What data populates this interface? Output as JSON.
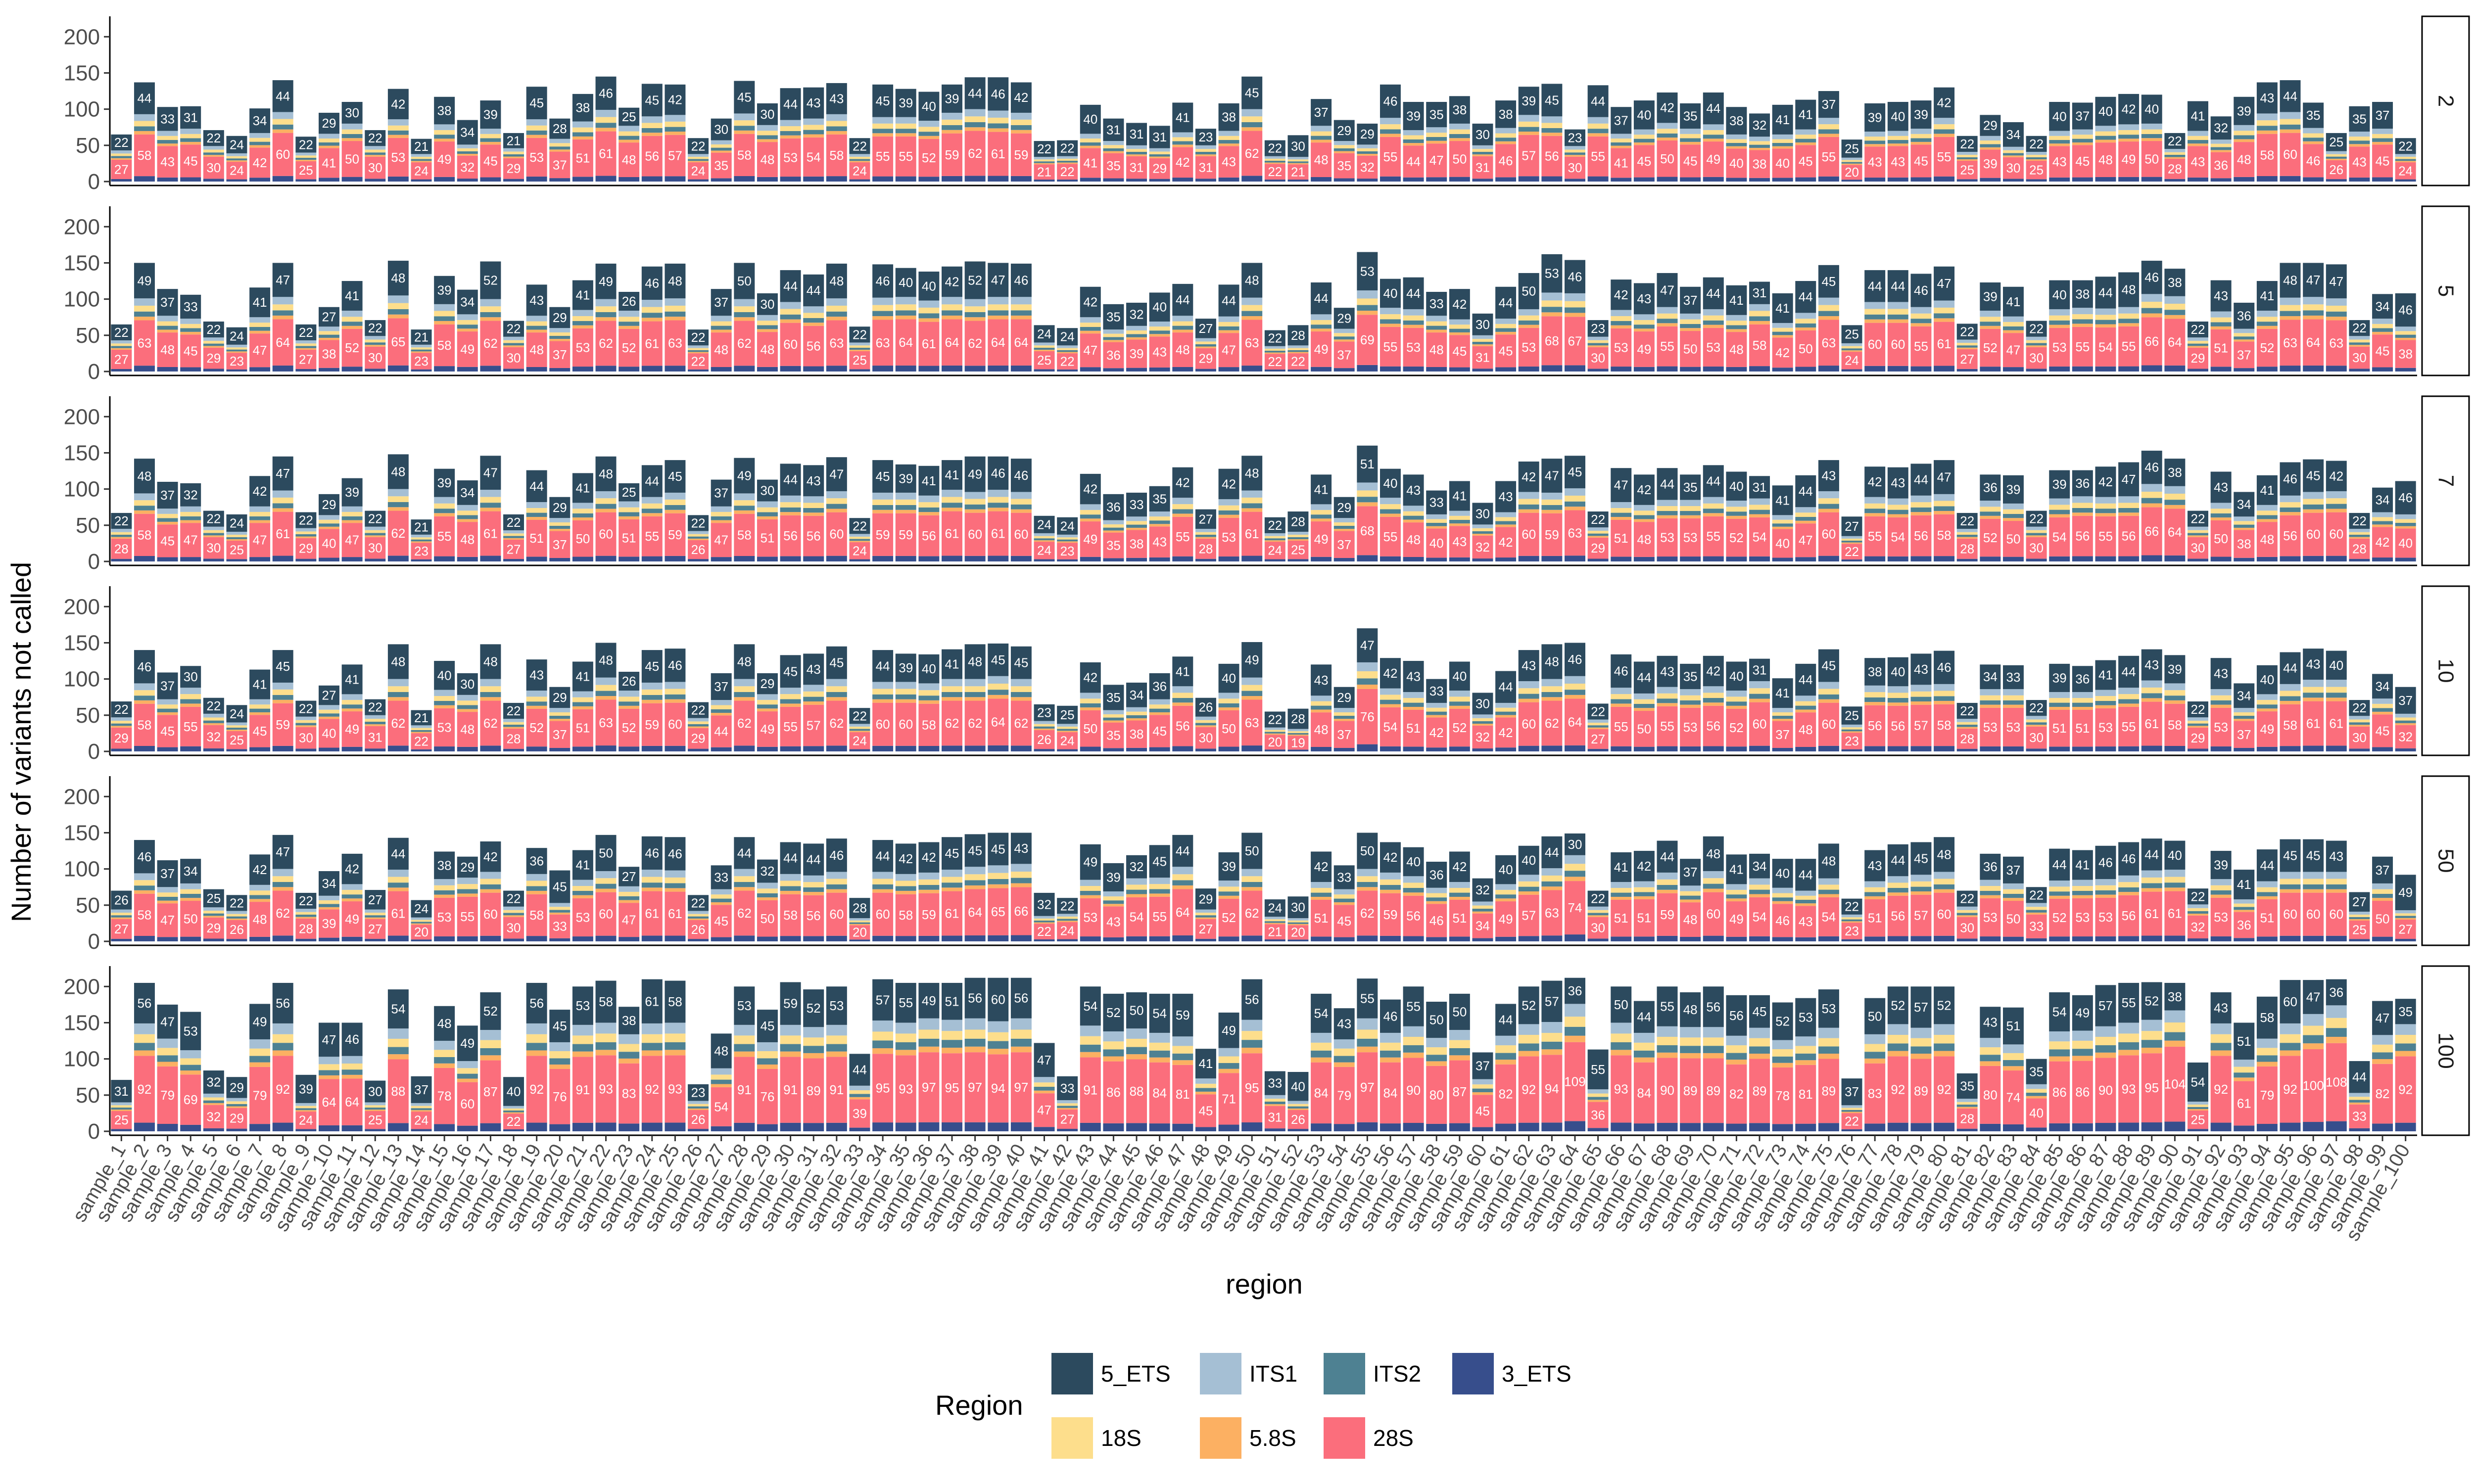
{
  "chart_data": {
    "type": "bar",
    "stacked": true,
    "facets_label_position": "right",
    "xlabel": "region",
    "ylabel": "Number of variants not called",
    "ylim": [
      0,
      220
    ],
    "yticks": [
      0,
      50,
      100,
      150,
      200
    ],
    "grid": false,
    "legend": {
      "title": "Region",
      "position": "bottom",
      "items": [
        {
          "name": "5_ETS",
          "color": "#2C4A5E"
        },
        {
          "name": "ITS1",
          "color": "#A5BFD4"
        },
        {
          "name": "ITS2",
          "color": "#4E8192"
        },
        {
          "name": "3_ETS",
          "color": "#374E8C"
        },
        {
          "name": "18S",
          "color": "#FDDE8C"
        },
        {
          "name": "5.8S",
          "color": "#FCB062"
        },
        {
          "name": "28S",
          "color": "#FB6E7C"
        }
      ]
    },
    "stack_order_bottom_to_top": [
      "3_ETS",
      "28S",
      "5.8S",
      "ITS2",
      "18S",
      "ITS1",
      "5_ETS"
    ],
    "totals_by_facet": {
      "2": [
        65,
        137,
        103,
        104,
        71,
        63,
        101,
        140,
        62,
        95,
        110,
        71,
        128,
        59,
        117,
        85,
        112,
        67,
        131,
        87,
        121,
        145,
        102,
        135,
        134,
        60,
        87,
        139,
        108,
        129,
        130,
        136,
        60,
        134,
        128,
        124,
        134,
        144,
        144,
        137,
        56,
        57,
        106,
        87,
        81,
        77,
        109,
        73,
        108,
        145,
        57,
        64,
        114,
        85,
        80,
        134,
        110,
        110,
        118,
        80,
        112,
        131,
        135,
        72,
        133,
        103,
        112,
        123,
        108,
        123,
        103,
        94,
        106,
        113,
        125,
        58,
        108,
        110,
        112,
        130,
        63,
        92,
        82,
        63,
        110,
        109,
        117,
        121,
        120,
        67,
        111,
        90,
        117,
        137,
        140,
        109,
        67,
        104,
        110,
        60
      ],
      "5": [
        65,
        150,
        114,
        106,
        69,
        61,
        116,
        150,
        65,
        89,
        125,
        71,
        153,
        58,
        132,
        113,
        152,
        70,
        120,
        89,
        126,
        149,
        110,
        145,
        149,
        58,
        114,
        150,
        108,
        140,
        134,
        149,
        62,
        148,
        143,
        138,
        145,
        152,
        150,
        149,
        64,
        60,
        117,
        93,
        95,
        109,
        121,
        73,
        120,
        150,
        57,
        64,
        123,
        88,
        165,
        128,
        130,
        110,
        114,
        80,
        117,
        136,
        162,
        154,
        71,
        127,
        122,
        136,
        117,
        130,
        119,
        124,
        108,
        125,
        147,
        64,
        140,
        140,
        135,
        145,
        66,
        123,
        117,
        70,
        126,
        126,
        131,
        137,
        153,
        142,
        69,
        126,
        95,
        125,
        150,
        150,
        148,
        71,
        107,
        108
      ],
      "7": [
        67,
        142,
        110,
        108,
        70,
        65,
        118,
        145,
        68,
        93,
        115,
        70,
        148,
        58,
        128,
        112,
        146,
        65,
        126,
        89,
        122,
        145,
        108,
        133,
        140,
        64,
        113,
        143,
        113,
        135,
        133,
        144,
        60,
        140,
        134,
        132,
        140,
        145,
        145,
        142,
        63,
        61,
        121,
        93,
        95,
        104,
        130,
        72,
        128,
        146,
        61,
        69,
        120,
        89,
        160,
        128,
        120,
        98,
        111,
        81,
        111,
        138,
        142,
        146,
        69,
        129,
        120,
        129,
        120,
        133,
        124,
        118,
        105,
        119,
        140,
        62,
        131,
        130,
        135,
        140,
        67,
        120,
        119,
        70,
        126,
        126,
        131,
        137,
        153,
        142,
        70,
        124,
        96,
        119,
        137,
        141,
        139,
        67,
        102,
        111
      ],
      "10": [
        69,
        140,
        109,
        118,
        74,
        64,
        113,
        140,
        70,
        91,
        120,
        72,
        148,
        57,
        125,
        108,
        148,
        67,
        127,
        89,
        124,
        150,
        110,
        140,
        142,
        68,
        108,
        148,
        108,
        133,
        135,
        145,
        60,
        140,
        135,
        134,
        141,
        148,
        149,
        145,
        65,
        63,
        123,
        92,
        95,
        108,
        131,
        74,
        121,
        151,
        55,
        59,
        120,
        89,
        170,
        129,
        125,
        100,
        124,
        81,
        111,
        140,
        148,
        150,
        66,
        134,
        124,
        132,
        121,
        132,
        124,
        128,
        101,
        121,
        141,
        62,
        129,
        130,
        135,
        139,
        67,
        120,
        119,
        71,
        121,
        118,
        126,
        132,
        141,
        133,
        69,
        129,
        94,
        119,
        137,
        142,
        139,
        71,
        107,
        89
      ],
      "50": [
        70,
        140,
        112,
        114,
        72,
        64,
        120,
        147,
        67,
        97,
        121,
        71,
        143,
        57,
        124,
        117,
        138,
        70,
        129,
        98,
        126,
        147,
        103,
        145,
        144,
        64,
        105,
        144,
        113,
        137,
        135,
        142,
        60,
        140,
        135,
        137,
        144,
        148,
        150,
        150,
        67,
        60,
        134,
        108,
        119,
        133,
        147,
        73,
        123,
        150,
        58,
        62,
        124,
        105,
        150,
        137,
        130,
        110,
        124,
        87,
        119,
        132,
        145,
        149,
        70,
        123,
        125,
        139,
        114,
        145,
        120,
        121,
        114,
        114,
        135,
        59,
        126,
        134,
        137,
        144,
        70,
        121,
        117,
        75,
        128,
        126,
        132,
        137,
        142,
        139,
        73,
        125,
        99,
        127,
        141,
        141,
        139,
        68,
        117,
        92
      ],
      "100": [
        71,
        205,
        175,
        165,
        84,
        75,
        176,
        205,
        78,
        150,
        150,
        70,
        196,
        76,
        173,
        146,
        192,
        75,
        205,
        168,
        200,
        208,
        172,
        210,
        208,
        65,
        135,
        200,
        168,
        206,
        196,
        200,
        107,
        210,
        205,
        205,
        205,
        212,
        212,
        212,
        122,
        76,
        200,
        190,
        192,
        190,
        190,
        114,
        164,
        210,
        83,
        82,
        190,
        170,
        211,
        182,
        200,
        179,
        190,
        109,
        176,
        200,
        208,
        212,
        113,
        200,
        180,
        200,
        192,
        200,
        188,
        188,
        178,
        184,
        196,
        73,
        184,
        200,
        200,
        200,
        80,
        172,
        171,
        100,
        192,
        188,
        202,
        205,
        206,
        205,
        95,
        192,
        150,
        186,
        209,
        209,
        210,
        97,
        180,
        183
      ]
    },
    "top_segment_5_ETS_by_facet": {
      "2": [
        22,
        44,
        33,
        31,
        22,
        24,
        34,
        44,
        22,
        29,
        30,
        22,
        42,
        21,
        38,
        34,
        39,
        21,
        45,
        28,
        38,
        46,
        25,
        45,
        42,
        22,
        30,
        45,
        30,
        44,
        43,
        43,
        22,
        45,
        39,
        40,
        39,
        44,
        46,
        42,
        22,
        22,
        40,
        31,
        31,
        31,
        41,
        23,
        38,
        45,
        22,
        30,
        37,
        29,
        29,
        46,
        39,
        35,
        38,
        30,
        38,
        39,
        45,
        23,
        44,
        37,
        40,
        42,
        35,
        44,
        38,
        32,
        41,
        41,
        37,
        25,
        39,
        40,
        39,
        42,
        22,
        29,
        34,
        22,
        40,
        37,
        40,
        42,
        40,
        22,
        41,
        32,
        39,
        43,
        44,
        35,
        25,
        35,
        37,
        22
      ],
      "5": [
        22,
        49,
        37,
        33,
        22,
        24,
        41,
        47,
        22,
        27,
        41,
        22,
        48,
        21,
        39,
        34,
        52,
        22,
        43,
        29,
        41,
        49,
        26,
        46,
        48,
        22,
        37,
        50,
        30,
        44,
        44,
        48,
        22,
        46,
        40,
        40,
        42,
        52,
        47,
        46,
        24,
        24,
        42,
        35,
        32,
        40,
        44,
        27,
        44,
        48,
        22,
        28,
        44,
        29,
        53,
        40,
        44,
        33,
        42,
        30,
        44,
        50,
        53,
        46,
        23,
        42,
        43,
        47,
        37,
        44,
        41,
        31,
        41,
        44,
        45,
        25,
        44,
        44,
        46,
        47,
        22,
        39,
        41,
        22,
        40,
        38,
        44,
        48,
        46,
        38,
        22,
        43,
        36,
        41,
        48,
        47,
        47,
        22,
        34,
        46
      ],
      "7": [
        22,
        48,
        37,
        32,
        22,
        24,
        42,
        47,
        22,
        29,
        39,
        22,
        48,
        21,
        39,
        34,
        47,
        22,
        44,
        29,
        41,
        48,
        25,
        44,
        45,
        22,
        37,
        49,
        30,
        44,
        43,
        47,
        22,
        45,
        39,
        41,
        41,
        49,
        46,
        46,
        24,
        24,
        42,
        36,
        33,
        35,
        42,
        27,
        42,
        48,
        22,
        28,
        41,
        29,
        51,
        40,
        43,
        33,
        41,
        30,
        43,
        42,
        47,
        45,
        22,
        47,
        42,
        44,
        35,
        44,
        40,
        31,
        41,
        44,
        43,
        27,
        42,
        43,
        44,
        47,
        22,
        36,
        39,
        22,
        39,
        36,
        42,
        47,
        46,
        38,
        22,
        43,
        34,
        41,
        46,
        45,
        42,
        22,
        34,
        46
      ],
      "10": [
        22,
        46,
        37,
        30,
        22,
        24,
        41,
        45,
        22,
        27,
        41,
        22,
        48,
        21,
        40,
        30,
        48,
        22,
        43,
        29,
        41,
        48,
        26,
        45,
        46,
        22,
        37,
        48,
        29,
        45,
        43,
        45,
        22,
        44,
        39,
        40,
        41,
        48,
        45,
        45,
        23,
        25,
        42,
        35,
        34,
        36,
        41,
        26,
        40,
        49,
        22,
        28,
        43,
        29,
        47,
        42,
        43,
        33,
        40,
        30,
        44,
        43,
        48,
        46,
        22,
        46,
        44,
        43,
        35,
        42,
        40,
        31,
        41,
        44,
        45,
        25,
        38,
        40,
        43,
        46,
        22,
        34,
        33,
        22,
        39,
        36,
        41,
        44,
        43,
        39,
        22,
        43,
        34,
        40,
        44,
        43,
        40,
        22,
        34,
        37
      ],
      "50": [
        26,
        46,
        37,
        34,
        25,
        22,
        42,
        47,
        22,
        34,
        42,
        27,
        44,
        24,
        38,
        29,
        42,
        22,
        36,
        45,
        41,
        50,
        27,
        46,
        46,
        22,
        33,
        44,
        32,
        44,
        44,
        46,
        28,
        44,
        42,
        42,
        45,
        45,
        45,
        43,
        32,
        22,
        49,
        39,
        32,
        45,
        44,
        29,
        39,
        50,
        24,
        30,
        42,
        33,
        50,
        42,
        40,
        36,
        42,
        32,
        40,
        40,
        44,
        30,
        22,
        41,
        42,
        44,
        37,
        48,
        41,
        34,
        40,
        44,
        48,
        22,
        43,
        44,
        45,
        48,
        22,
        36,
        37,
        22,
        44,
        41,
        46,
        46,
        44,
        40,
        22,
        39,
        41,
        44,
        45,
        45,
        43,
        27,
        37,
        49
      ],
      "100": [
        31,
        56,
        47,
        53,
        32,
        29,
        49,
        56,
        39,
        47,
        46,
        30,
        54,
        37,
        48,
        49,
        52,
        40,
        56,
        45,
        53,
        58,
        38,
        61,
        58,
        23,
        48,
        53,
        45,
        59,
        52,
        53,
        44,
        57,
        55,
        49,
        51,
        56,
        60,
        56,
        47,
        33,
        54,
        52,
        50,
        54,
        59,
        41,
        49,
        56,
        33,
        40,
        54,
        43,
        55,
        46,
        55,
        50,
        50,
        37,
        44,
        52,
        57,
        36,
        55,
        50,
        44,
        55,
        48,
        56,
        56,
        45,
        52,
        53,
        53,
        37,
        50,
        52,
        57,
        52,
        35,
        43,
        51,
        35,
        54,
        49,
        57,
        55,
        52,
        38,
        54,
        43,
        51,
        58,
        60,
        47,
        36,
        44,
        47,
        35
      ]
    }
  }
}
